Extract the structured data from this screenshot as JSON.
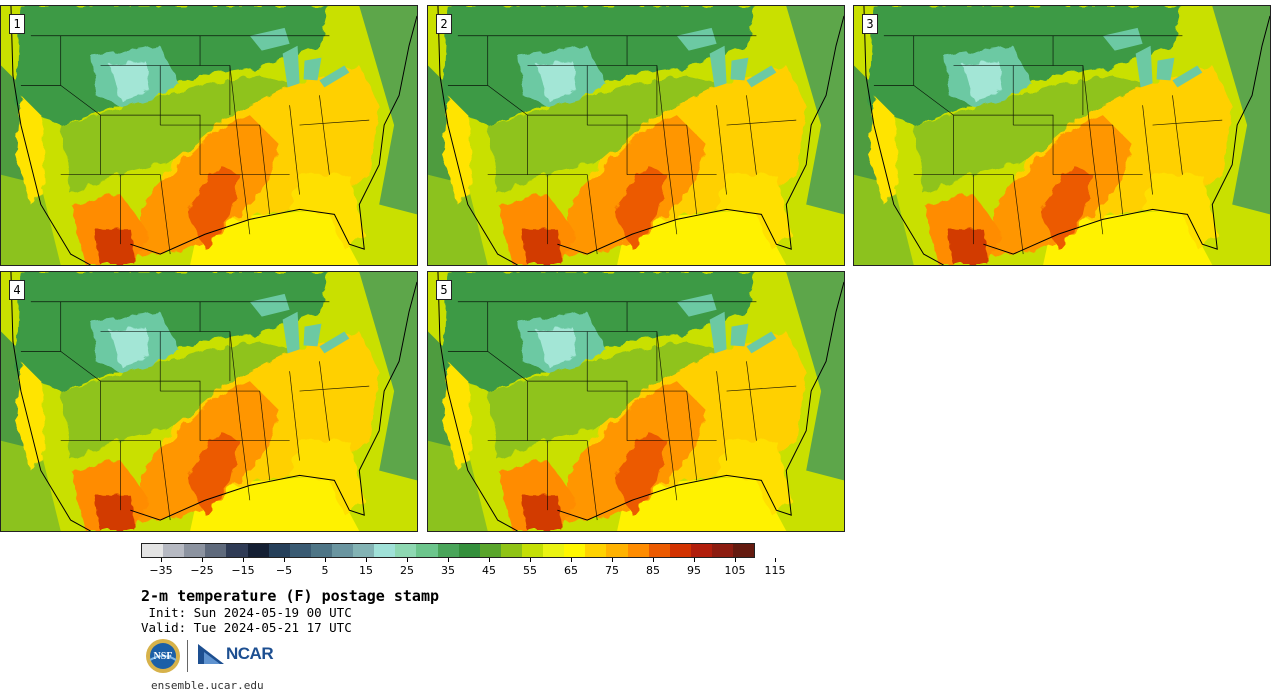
{
  "panels": [
    {
      "label": "1"
    },
    {
      "label": "2"
    },
    {
      "label": "3"
    },
    {
      "label": "4"
    },
    {
      "label": "5"
    }
  ],
  "colorbar": {
    "colors": [
      "#e4e4e4",
      "#b6b9c2",
      "#8c93a0",
      "#5f6a7c",
      "#2f3b55",
      "#141f33",
      "#26405a",
      "#3a5b73",
      "#4e7586",
      "#6a95a0",
      "#83b3b4",
      "#a0e1d8",
      "#8ed8b2",
      "#6cc58c",
      "#4aa55a",
      "#348f3c",
      "#5aa52c",
      "#8fc316",
      "#c4df05",
      "#eaf312",
      "#fff700",
      "#ffd200",
      "#ffb200",
      "#ff8c00",
      "#eb5a00",
      "#d23200",
      "#b11e0c",
      "#8c1c10",
      "#641a0f"
    ],
    "tick_labels": [
      "−35",
      "−25",
      "−15",
      "−5",
      "5",
      "15",
      "25",
      "35",
      "45",
      "55",
      "65",
      "75",
      "85",
      "95",
      "105",
      "115"
    ]
  },
  "title": "2-m temperature (F) postage stamp",
  "init": " Init: Sun 2024-05-19 00 UTC",
  "valid": "Valid: Tue 2024-05-21 17 UTC",
  "logos": {
    "nsf": "NSF",
    "ncar": "NCAR"
  },
  "footer": "ensemble.ucar.edu"
}
